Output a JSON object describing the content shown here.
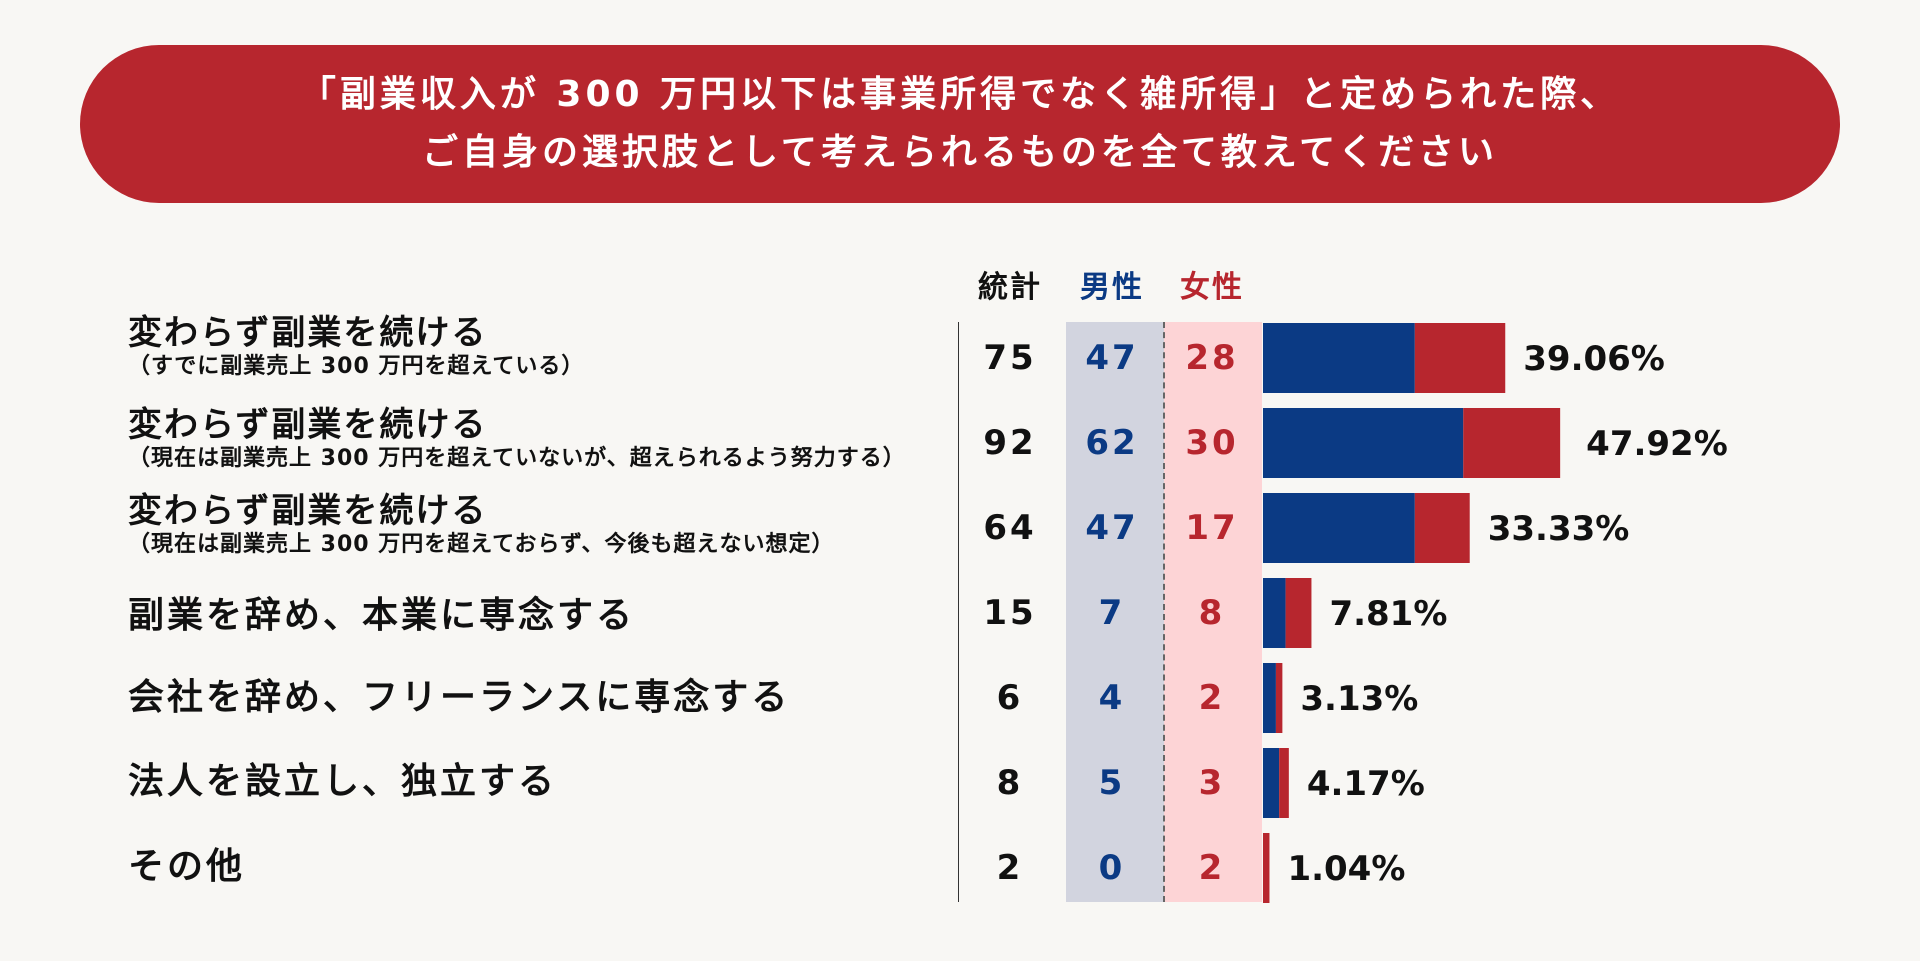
{
  "title": {
    "line1": "「副業収入が 300 万円以下は事業所得でなく雑所得」と定められた際、",
    "line2": "ご自身の選択肢として考えられるものを全て教えてください"
  },
  "headers": {
    "total": "統計",
    "male": "男性",
    "female": "女性"
  },
  "colors": {
    "male": "#0b3a84",
    "female": "#b7262e",
    "banner": "#b7262e"
  },
  "rows": [
    {
      "label": "変わらず副業を続ける",
      "sub": "（すでに副業売上 300 万円を超えている）",
      "total": "75",
      "male": "47",
      "female": "28",
      "pct": "39.06%"
    },
    {
      "label": "変わらず副業を続ける",
      "sub": "（現在は副業売上 300 万円を超えていないが、超えられるよう努力する）",
      "total": "92",
      "male": "62",
      "female": "30",
      "pct": "47.92%"
    },
    {
      "label": "変わらず副業を続ける",
      "sub": "（現在は副業売上 300 万円を超えておらず、今後も超えない想定）",
      "total": "64",
      "male": "47",
      "female": "17",
      "pct": "33.33%"
    },
    {
      "label": "副業を辞め、本業に専念する",
      "sub": "",
      "total": "15",
      "male": "7",
      "female": "8",
      "pct": "7.81%"
    },
    {
      "label": "会社を辞め、フリーランスに専念する",
      "sub": "",
      "total": "6",
      "male": "4",
      "female": "2",
      "pct": "3.13%"
    },
    {
      "label": "法人を設立し、独立する",
      "sub": "",
      "total": "8",
      "male": "5",
      "female": "3",
      "pct": "4.17%"
    },
    {
      "label": "その他",
      "sub": "",
      "total": "2",
      "male": "0",
      "female": "2",
      "pct": "1.04%"
    }
  ],
  "chart_data": {
    "type": "bar",
    "orientation": "horizontal",
    "stacked": true,
    "title": "「副業収入が 300 万円以下は事業所得でなく雑所得」と定められた際、ご自身の選択肢として考えられるものを全て教えてください",
    "categories": [
      "変わらず副業を続ける（すでに副業売上 300 万円を超えている）",
      "変わらず副業を続ける（現在は副業売上 300 万円を超えていないが、超えられるよう努力する）",
      "変わらず副業を続ける（現在は副業売上 300 万円を超えておらず、今後も超えない想定）",
      "副業を辞め、本業に専念する",
      "会社を辞め、フリーランスに専念する",
      "法人を設立し、独立する",
      "その他"
    ],
    "series": [
      {
        "name": "男性",
        "values": [
          47,
          62,
          47,
          7,
          4,
          5,
          0
        ]
      },
      {
        "name": "女性",
        "values": [
          28,
          30,
          17,
          8,
          2,
          3,
          2
        ]
      }
    ],
    "totals": [
      75,
      92,
      64,
      15,
      6,
      8,
      2
    ],
    "percentages": [
      39.06,
      47.92,
      33.33,
      7.81,
      3.13,
      4.17,
      1.04
    ]
  }
}
